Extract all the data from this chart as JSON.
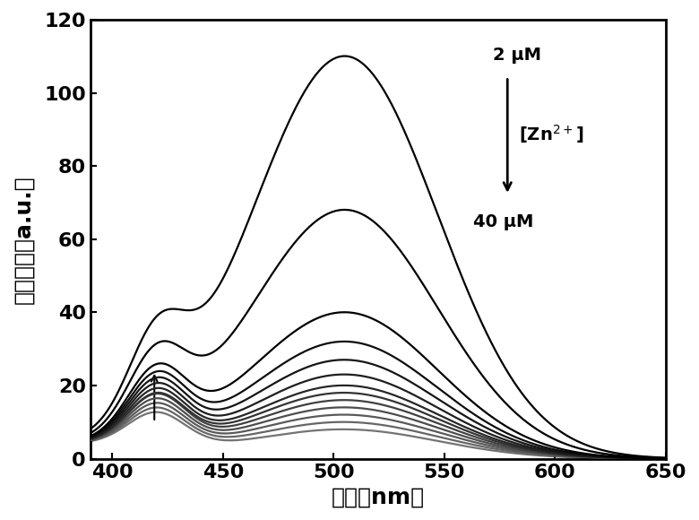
{
  "xlabel": "波长（nm）",
  "ylabel": "荧光强度（a.u.）",
  "xlim": [
    390,
    650
  ],
  "ylim": [
    0,
    120
  ],
  "xticks": [
    400,
    450,
    500,
    550,
    600,
    650
  ],
  "yticks": [
    0,
    20,
    40,
    60,
    80,
    100,
    120
  ],
  "background_color": "#ffffff",
  "label_top": "2 μM",
  "label_bottom": "40 μM",
  "label_middle": "[Zn$^{2+}$]",
  "peak1_wavelength": 420,
  "peak2_wavelength": 505,
  "n_curves": 13,
  "peak1_heights": [
    22,
    20,
    18,
    17,
    16,
    15,
    14,
    13,
    13,
    12,
    11,
    10,
    9
  ],
  "peak2_heights": [
    110,
    68,
    40,
    32,
    27,
    23,
    20,
    18,
    16,
    14,
    12,
    10,
    8
  ],
  "peak1_sigma": 13,
  "peak2_sigma": 42,
  "font_size_label": 18,
  "font_size_tick": 16,
  "font_size_annotation": 14
}
